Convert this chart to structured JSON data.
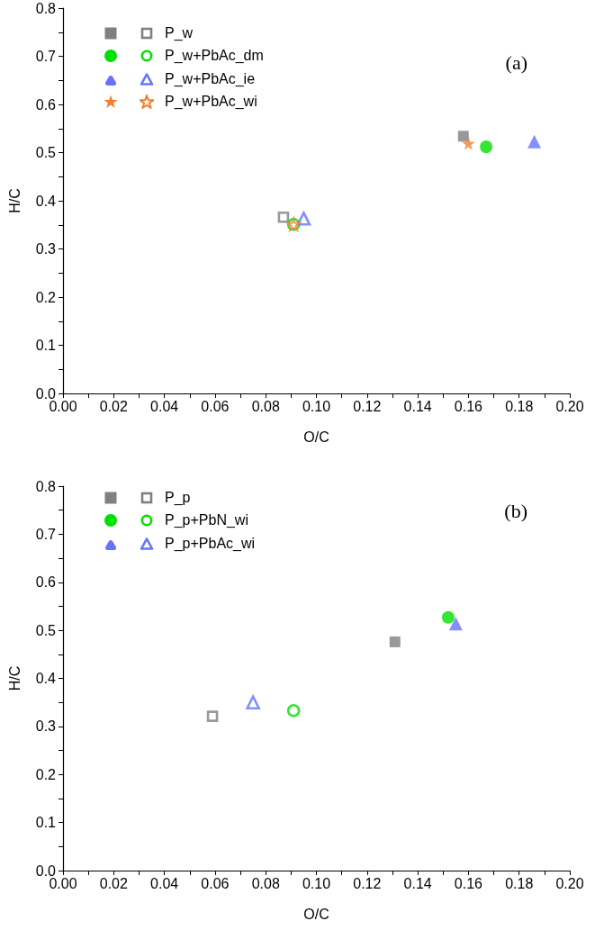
{
  "chart_data": [
    {
      "type": "scatter",
      "xlabel": "O/C",
      "ylabel": "H/C",
      "annotations": [
        "(a)"
      ],
      "xlim": [
        0,
        0.2
      ],
      "xticks": [
        {
          "value": 0,
          "label": "0.00"
        },
        {
          "value": 0.02,
          "label": "0.02"
        },
        {
          "value": 0.04,
          "label": "0.04"
        },
        {
          "value": 0.06,
          "label": "0.06"
        },
        {
          "value": 0.08,
          "label": "0.08"
        },
        {
          "value": 0.1,
          "label": "0.10"
        },
        {
          "value": 0.12,
          "label": "0.12"
        },
        {
          "value": 0.14,
          "label": "0.14"
        },
        {
          "value": 0.16,
          "label": "0.16"
        },
        {
          "value": 0.18,
          "label": "0.18"
        },
        {
          "value": 0.2,
          "label": "0.20"
        }
      ],
      "ylim": [
        0,
        0.8
      ],
      "yticks": [
        {
          "value": 0,
          "label": "0.0"
        },
        0.1,
        0.2,
        0.3,
        0.4,
        0.5,
        0.6,
        0.7,
        0.8
      ],
      "grid": false,
      "legend": "top left",
      "series": [
        {
          "name": "P_w",
          "color": "#808080",
          "marker": "square",
          "x": [
            0.158
          ],
          "values": [
            0.534
          ]
        },
        {
          "color": "#808080",
          "marker": "square",
          "x": [
            0.087
          ],
          "values": [
            0.366
          ]
        },
        {
          "name": "P_w+PbAc_dm",
          "color": "#00e000",
          "marker": "circle",
          "x": [
            0.167
          ],
          "values": [
            0.512
          ]
        },
        {
          "color": "#00e000",
          "marker": "circle",
          "x": [
            0.091
          ],
          "values": [
            0.351
          ]
        },
        {
          "name": "P_w+PbAc_ie",
          "color": "#6673ff",
          "marker": "triangle",
          "x": [
            0.186
          ],
          "values": [
            0.523
          ]
        },
        {
          "color": "#6673ff",
          "marker": "triangle",
          "x": [
            0.095
          ],
          "values": [
            0.363
          ]
        },
        {
          "name": "P_w+PbAc_wi",
          "color": "#f08030",
          "marker": "star",
          "x": [
            0.16
          ],
          "values": [
            0.519
          ]
        },
        {
          "color": "#f08030",
          "marker": "star",
          "x": [
            0.091
          ],
          "values": [
            0.351
          ]
        }
      ]
    },
    {
      "type": "scatter",
      "xlabel": "O/C",
      "ylabel": "H/C",
      "annotations": [
        "(b)"
      ],
      "xlim": [
        0,
        0.2
      ],
      "xticks": [
        {
          "value": 0,
          "label": "0.00"
        },
        {
          "value": 0.02,
          "label": "0.02"
        },
        {
          "value": 0.04,
          "label": "0.04"
        },
        {
          "value": 0.06,
          "label": "0.06"
        },
        {
          "value": 0.08,
          "label": "0.08"
        },
        {
          "value": 0.1,
          "label": "0.10"
        },
        {
          "value": 0.12,
          "label": "0.12"
        },
        {
          "value": 0.14,
          "label": "0.14"
        },
        {
          "value": 0.16,
          "label": "0.16"
        },
        {
          "value": 0.18,
          "label": "0.18"
        },
        {
          "value": 0.2,
          "label": "0.20"
        }
      ],
      "ylim": [
        0,
        0.8
      ],
      "yticks": [
        {
          "value": 0,
          "label": "0.0"
        },
        0.1,
        0.2,
        0.3,
        0.4,
        0.5,
        0.6,
        0.7,
        0.8
      ],
      "grid": false,
      "legend": "top left",
      "series": [
        {
          "name": "P_p",
          "color": "#808080",
          "marker": "square",
          "x": [
            0.131
          ],
          "values": [
            0.476
          ]
        },
        {
          "color": "#808080",
          "marker": "square",
          "x": [
            0.059
          ],
          "values": [
            0.321
          ]
        },
        {
          "name": "P_p+PbN_wi",
          "color": "#00e000",
          "marker": "circle",
          "x": [
            0.152
          ],
          "values": [
            0.527
          ]
        },
        {
          "color": "#00e000",
          "marker": "circle",
          "x": [
            0.091
          ],
          "values": [
            0.333
          ]
        },
        {
          "name": "P_p+PbAc_wi",
          "color": "#6673ff",
          "marker": "triangle",
          "x": [
            0.155
          ],
          "values": [
            0.514
          ]
        },
        {
          "color": "#6673ff",
          "marker": "triangle",
          "x": [
            0.075
          ],
          "values": [
            0.35
          ]
        }
      ]
    }
  ]
}
